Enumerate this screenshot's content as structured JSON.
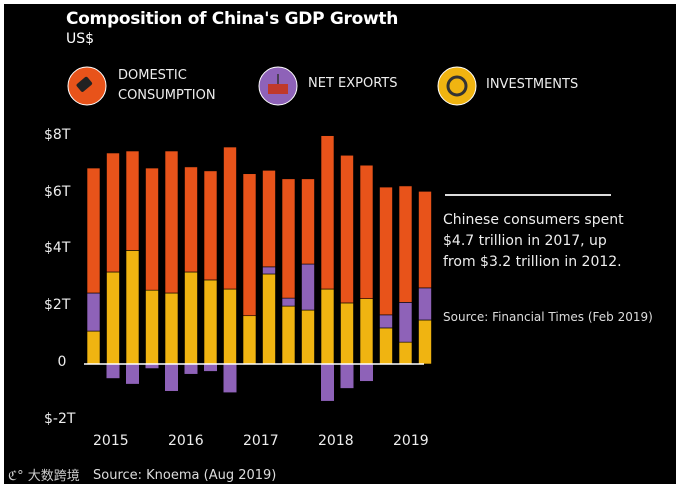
{
  "chart_data": {
    "type": "bar",
    "stacked": true,
    "title": "Composition of China's GDP Growth",
    "subtitle": "US$",
    "ylim": [
      -2,
      8
    ],
    "yticks": [
      {
        "v": 8,
        "label": "$8T"
      },
      {
        "v": 6,
        "label": "$6T"
      },
      {
        "v": 4,
        "label": "$4T"
      },
      {
        "v": 2,
        "label": "$2T"
      },
      {
        "v": 0,
        "label": "0"
      },
      {
        "v": -2,
        "label": "$-2T"
      }
    ],
    "xtick_labels": [
      "2015",
      "2016",
      "2017",
      "2018",
      "2019"
    ],
    "legend": [
      {
        "name": "DOMESTIC CONSUMPTION",
        "lines": [
          "DOMESTIC",
          "CONSUMPTION"
        ],
        "icon": "price-tag-icon",
        "color": "#e8531a"
      },
      {
        "name": "NET EXPORTS",
        "lines": [
          "NET EXPORTS"
        ],
        "icon": "shipping-container-icon",
        "color": "#8e62b8"
      },
      {
        "name": "INVESTMENTS",
        "lines": [
          "INVESTMENTS"
        ],
        "icon": "pie-chart-icon",
        "color": "#f0b411"
      }
    ],
    "series": [
      {
        "name": "Investments",
        "values": [
          1.16,
          3.24,
          4.0,
          2.6,
          2.5,
          3.24,
          2.96,
          2.64,
          1.7,
          3.17,
          2.04,
          1.9,
          2.64,
          2.15,
          2.3,
          1.27,
          0.77,
          1.55
        ]
      },
      {
        "name": "Net Exports",
        "values": [
          1.34,
          -0.5,
          -0.7,
          -0.15,
          -0.95,
          -0.35,
          -0.25,
          -1.0,
          0,
          0.25,
          0.28,
          1.62,
          -1.3,
          -0.85,
          -0.6,
          0.46,
          1.4,
          1.13
        ]
      },
      {
        "name": "Domestic Consumption",
        "values": [
          4.4,
          4.19,
          3.5,
          4.3,
          5.0,
          3.7,
          3.84,
          5.0,
          5.0,
          3.4,
          4.2,
          3.0,
          5.4,
          5.2,
          4.7,
          4.5,
          4.1,
          3.4
        ]
      }
    ]
  },
  "annotation": {
    "text": "Chinese consumers spent $4.7 trillion in 2017, up from $3.2 trillion in 2012.",
    "source": "Source: Financial Times (Feb 2019)"
  },
  "footer": {
    "watermark": "大数跨境",
    "source": "Source: Knoema (Aug 2019)"
  }
}
